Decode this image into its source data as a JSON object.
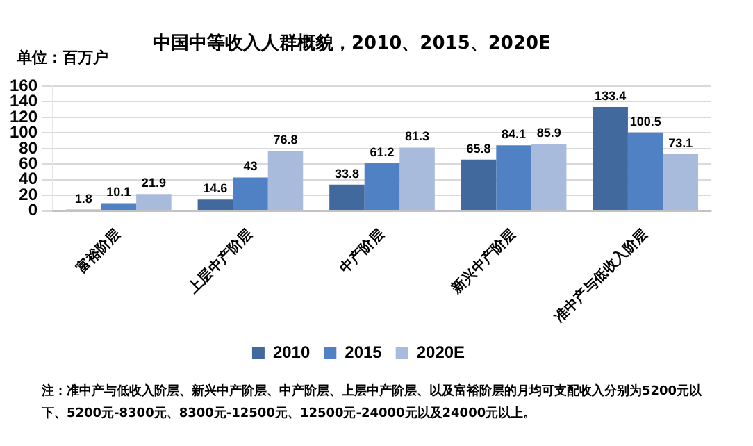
{
  "chart_data": {
    "type": "bar",
    "title": "中国中等收入人群概貌，2010、2015、2020E",
    "ylabel": "单位：百万户",
    "categories": [
      "富裕阶层",
      "上层中产阶层",
      "中产阶层",
      "新兴中产阶层",
      "准中产与低收入阶层"
    ],
    "series": [
      {
        "name": "2010",
        "color": "#41699e",
        "values": [
          1.8,
          14.6,
          33.8,
          65.8,
          133.4
        ]
      },
      {
        "name": "2015",
        "color": "#4f81c4",
        "values": [
          10.1,
          43,
          61.2,
          84.1,
          100.5
        ]
      },
      {
        "name": "2020E",
        "color": "#a8bbdd",
        "values": [
          21.9,
          76.8,
          81.3,
          85.9,
          73.1
        ]
      }
    ],
    "ylim": [
      0,
      160
    ],
    "yticks": [
      0,
      20,
      40,
      60,
      80,
      100,
      120,
      140,
      160
    ],
    "grid": "y",
    "legend": "bottom",
    "data_labels": true,
    "annotations": [
      "注：准中产与低收入阶层、新兴中产阶层、中产阶层、上层中产阶层、以及富裕阶层的月均可支配收入分别为5200元以下、5200元-8300元、8300元-12500元、12500元-24000元以及24000元以上。"
    ]
  }
}
